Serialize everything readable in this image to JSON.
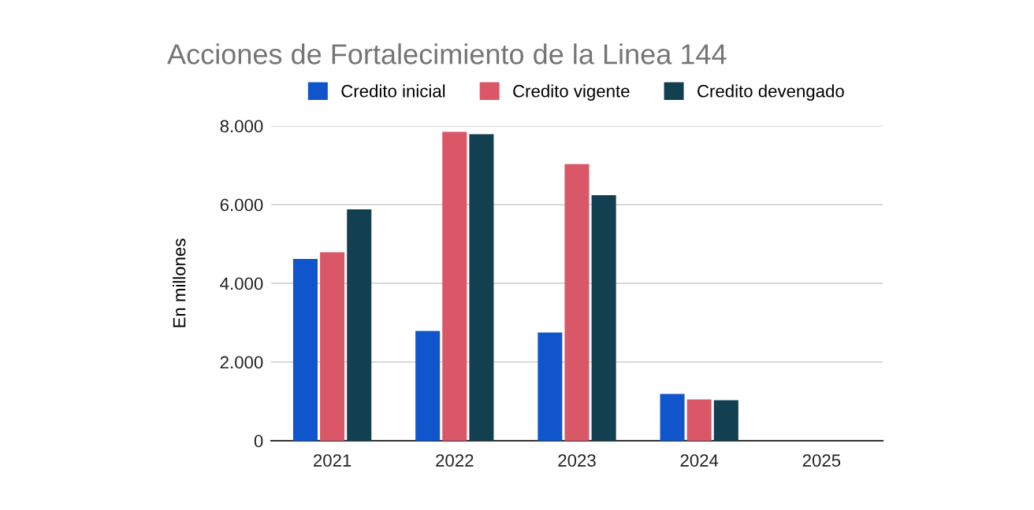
{
  "chart_data": {
    "type": "bar",
    "title": "Acciones de Fortalecimiento de la Linea 144",
    "ylabel": "En millones",
    "categories": [
      "2021",
      "2022",
      "2023",
      "2024",
      "2025"
    ],
    "series": [
      {
        "name": "Credito inicial",
        "color": "#1155cc",
        "values": [
          4620,
          2790,
          2750,
          1190,
          null
        ]
      },
      {
        "name": "Credito vigente",
        "color": "#d95767",
        "values": [
          4790,
          7850,
          7030,
          1050,
          null
        ]
      },
      {
        "name": "Credito devengado",
        "color": "#134050",
        "values": [
          5880,
          7790,
          6240,
          1030,
          null
        ]
      }
    ],
    "ylim": [
      0,
      8000
    ],
    "yticks": [
      {
        "value": 0,
        "label": "0"
      },
      {
        "value": 2000,
        "label": "2.000"
      },
      {
        "value": 4000,
        "label": "4.000"
      },
      {
        "value": 6000,
        "label": "6.000"
      },
      {
        "value": 8000,
        "label": "8.000"
      }
    ],
    "grid": "y",
    "legend": "top"
  }
}
